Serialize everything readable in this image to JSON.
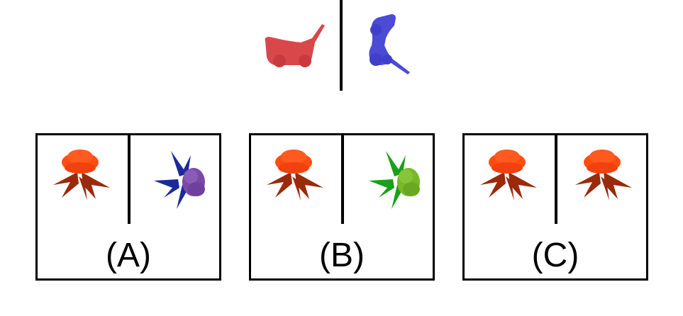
{
  "prompt": {
    "left_icon": "red-toy-cart-icon",
    "right_icon": "blue-toy-scooter-icon",
    "colors": {
      "left": "#d9474a",
      "right": "#4b4bd6"
    }
  },
  "options": [
    {
      "label": "(A)",
      "left_icon": "red-orange-flower-icon",
      "right_icon": "blue-purple-flower-icon"
    },
    {
      "label": "(B)",
      "left_icon": "red-orange-flower-icon",
      "right_icon": "green-flower-icon"
    },
    {
      "label": "(C)",
      "left_icon": "red-orange-flower-icon",
      "right_icon": "red-orange-flower-icon"
    }
  ],
  "colors": {
    "flower_petals_red": "#ff4d12",
    "flower_leaves_red": "#9a2a0a",
    "flower_petals_purple": "#7a4aa8",
    "flower_leaves_blue": "#1a2a9a",
    "flower_petals_green": "#77b82a",
    "flower_leaves_green": "#1aa01a"
  }
}
